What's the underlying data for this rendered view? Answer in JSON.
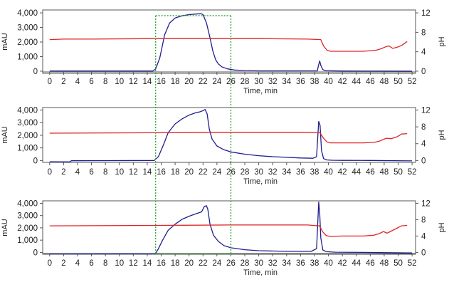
{
  "colors": {
    "absorbance": "#1f1f8f",
    "ph": "#e02424",
    "window": "#3aa83a",
    "frame": "#555555"
  },
  "chart_data": [
    {
      "type": "line",
      "x_ticks": [
        "0",
        "2",
        "4",
        "6",
        "8",
        "10",
        "12",
        "14",
        "16",
        "18",
        "20",
        "22",
        "24",
        "26",
        "28",
        "30",
        "32",
        "34",
        "36",
        "38",
        "40",
        "42",
        "44",
        "46",
        "48",
        "50",
        "52"
      ],
      "y_ticks_left": [
        "0",
        "1,000",
        "2,000",
        "3,000",
        "4,000"
      ],
      "y_ticks_right": [
        "0",
        "4",
        "8",
        "12"
      ],
      "xlabel": "Time, min",
      "ylabel_left": "mAU",
      "ylabel_right": "pH",
      "xlim": [
        -1,
        52.5
      ],
      "ylim_left": [
        -150,
        4200
      ],
      "ylim_right": [
        -0.45,
        12.6
      ],
      "series": [
        {
          "axis": "left",
          "color_key": "absorbance",
          "x": [
            0,
            14.8,
            15.2,
            15.8,
            16.5,
            17.2,
            18,
            19,
            20,
            21,
            21.7,
            22,
            22.5,
            23,
            23.4,
            23.8,
            24.2,
            24.7,
            25.5,
            26.5,
            28,
            30,
            38.4,
            38.6,
            38.75,
            38.9,
            39.2,
            39.6,
            42,
            52
          ],
          "y": [
            10,
            10,
            150,
            900,
            2500,
            3300,
            3650,
            3800,
            3880,
            3920,
            3940,
            3880,
            3300,
            2300,
            1400,
            800,
            500,
            300,
            160,
            80,
            40,
            20,
            20,
            450,
            700,
            400,
            100,
            30,
            10,
            0
          ]
        },
        {
          "axis": "right",
          "color_key": "ph",
          "x": [
            0,
            2,
            6,
            15,
            26,
            30,
            37,
            38.9,
            39.3,
            39.8,
            40.3,
            42,
            45,
            46.8,
            47.5,
            48.2,
            48.7,
            49.2,
            49.8,
            50.5,
            51.3
          ],
          "y": [
            6.5,
            6.6,
            6.6,
            6.7,
            6.7,
            6.7,
            6.6,
            6.5,
            5.2,
            4.3,
            4.1,
            4.1,
            4.1,
            4.3,
            4.6,
            5.0,
            5.2,
            4.7,
            4.9,
            5.3,
            6.1
          ]
        }
      ]
    },
    {
      "type": "line",
      "x_ticks": [
        "0",
        "2",
        "4",
        "6",
        "8",
        "10",
        "12",
        "14",
        "16",
        "18",
        "20",
        "22",
        "24",
        "26",
        "28",
        "30",
        "32",
        "34",
        "36",
        "38",
        "40",
        "42",
        "44",
        "46",
        "48",
        "50",
        "52"
      ],
      "y_ticks_left": [
        "0",
        "1,000",
        "2,000",
        "3,000",
        "4,000"
      ],
      "y_ticks_right": [
        "0",
        "4",
        "8",
        "12"
      ],
      "xlabel": "Time, min",
      "ylabel_left": "mAU",
      "ylabel_right": "pH",
      "xlim": [
        -1,
        52.5
      ],
      "ylim_left": [
        -150,
        4200
      ],
      "ylim_right": [
        -0.45,
        12.6
      ],
      "series": [
        {
          "axis": "left",
          "color_key": "absorbance",
          "x": [
            0,
            2.9,
            3.1,
            15,
            15.6,
            16.3,
            17,
            18,
            19,
            20,
            21,
            21.5,
            22,
            22.3,
            22.6,
            22.9,
            23.3,
            24,
            25,
            26,
            28,
            30,
            32,
            34,
            36,
            37.8,
            38.3,
            38.6,
            38.8,
            39,
            39.3,
            39.8,
            40.5,
            42,
            46,
            52
          ],
          "y": [
            -100,
            -110,
            -20,
            0,
            300,
            1200,
            2200,
            2900,
            3300,
            3600,
            3800,
            3850,
            3950,
            4050,
            3700,
            2500,
            1700,
            1150,
            850,
            680,
            500,
            380,
            300,
            250,
            200,
            180,
            300,
            3100,
            2800,
            800,
            150,
            40,
            20,
            10,
            0,
            -30
          ]
        },
        {
          "axis": "right",
          "color_key": "ph",
          "x": [
            0,
            15,
            26,
            36,
            38.8,
            39.3,
            39.8,
            40.3,
            42,
            45,
            46.5,
            47.3,
            48.3,
            49,
            49.8,
            50.5,
            51.3
          ],
          "y": [
            6.5,
            6.6,
            6.7,
            6.7,
            6.6,
            5.3,
            4.4,
            4.2,
            4.2,
            4.2,
            4.3,
            4.6,
            5.3,
            5.2,
            5.6,
            6.3,
            6.4
          ]
        }
      ]
    },
    {
      "type": "line",
      "x_ticks": [
        "0",
        "2",
        "4",
        "6",
        "8",
        "10",
        "12",
        "14",
        "16",
        "18",
        "20",
        "22",
        "24",
        "26",
        "28",
        "30",
        "32",
        "34",
        "36",
        "38",
        "40",
        "42",
        "44",
        "46",
        "48",
        "50",
        "52"
      ],
      "y_ticks_left": [
        "0",
        "1,000",
        "2,000",
        "3,000",
        "4,000"
      ],
      "y_ticks_right": [
        "0",
        "4",
        "8",
        "12"
      ],
      "xlabel": "Time, min",
      "ylabel_left": "mAU",
      "ylabel_right": "pH",
      "xlim": [
        -1,
        52.5
      ],
      "ylim_left": [
        -150,
        4200
      ],
      "ylim_right": [
        -0.45,
        12.6
      ],
      "series": [
        {
          "axis": "left",
          "color_key": "absorbance",
          "x": [
            0,
            15.2,
            15.6,
            16.2,
            17,
            18,
            19,
            20,
            21,
            21.8,
            22.2,
            22.5,
            22.7,
            23,
            23.5,
            24.2,
            25,
            26,
            28,
            30,
            34,
            37.5,
            38.3,
            38.6,
            38.75,
            38.9,
            39.2,
            39.7,
            41,
            45,
            52
          ],
          "y": [
            -120,
            -100,
            300,
            1000,
            1800,
            2300,
            2700,
            2950,
            3150,
            3300,
            3750,
            3800,
            3500,
            2300,
            1400,
            900,
            550,
            380,
            220,
            140,
            90,
            80,
            300,
            4100,
            3200,
            1200,
            200,
            60,
            20,
            0,
            -40
          ]
        },
        {
          "axis": "right",
          "color_key": "ph",
          "x": [
            0,
            15,
            26,
            37,
            38.7,
            39.2,
            39.7,
            40.3,
            42,
            45,
            46.5,
            47.3,
            47.9,
            48.4,
            49,
            49.8,
            50.5,
            51.3
          ],
          "y": [
            6.5,
            6.6,
            6.7,
            6.7,
            6.5,
            5.0,
            4.1,
            3.9,
            4.0,
            4.0,
            4.2,
            4.6,
            5.1,
            4.7,
            5.2,
            5.9,
            6.5,
            6.6
          ]
        }
      ]
    }
  ],
  "highlight_window": {
    "x_start": 15.2,
    "x_end": 26
  }
}
